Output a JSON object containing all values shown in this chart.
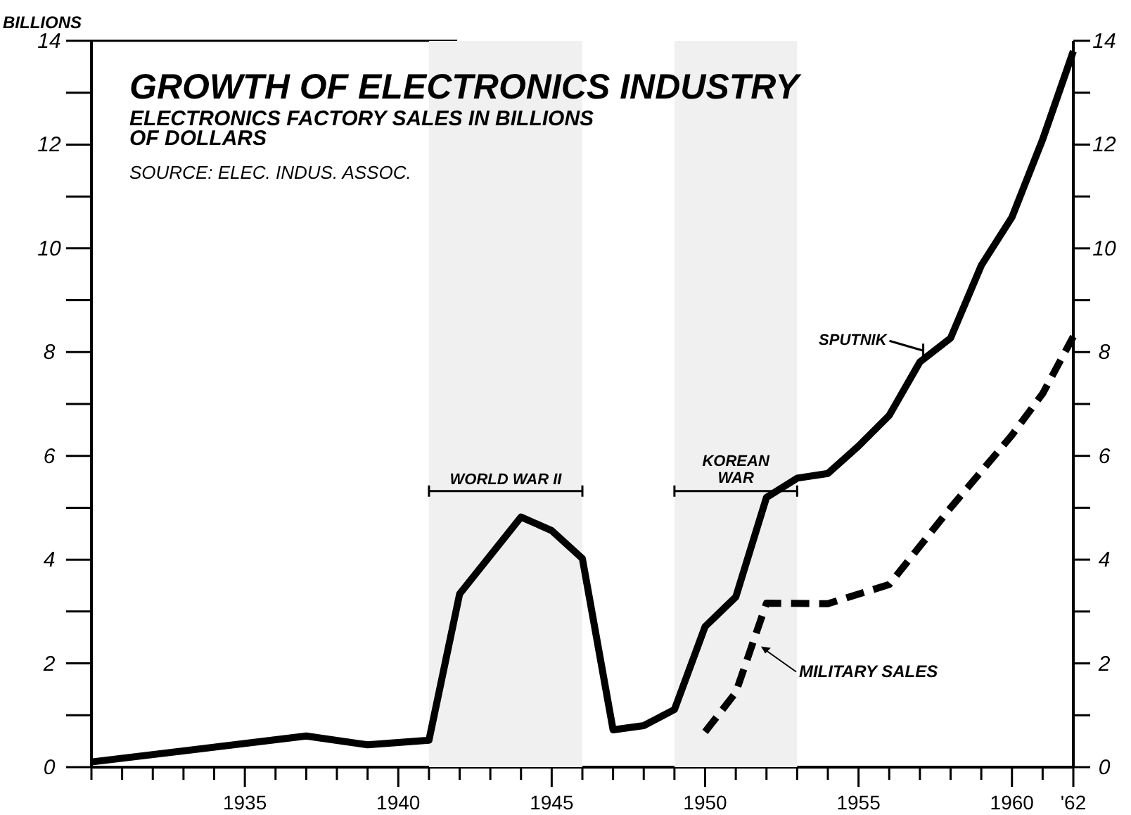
{
  "chart_data": {
    "type": "line",
    "title": "GROWTH OF ELECTRONICS INDUSTRY",
    "subtitle": "ELECTRONICS FACTORY SALES IN BILLIONS OF DOLLARS",
    "ylabel": "BILLIONS",
    "annotations": [
      "SOURCE: ELEC. INDUS. ASSOC.",
      {
        "text": "SPUTNIK",
        "x": 1957.2,
        "y": 7.81
      }
    ],
    "bands": [
      {
        "axis": "x",
        "from": 1941,
        "to": 1946,
        "label": "WORLD WAR II",
        "color": "#f0f0f0"
      },
      {
        "axis": "x",
        "from": 1949,
        "to": 1953,
        "label": "KOREAN WAR",
        "color": "#f0f0f0"
      }
    ],
    "series": [
      {
        "color": "#000000",
        "line_style": "solid",
        "x": [
          1930,
          1937,
          1939,
          1941,
          1942,
          1944,
          1945,
          1946,
          1947,
          1948,
          1949,
          1950,
          1951,
          1952,
          1953,
          1954,
          1955,
          1956,
          1957,
          1958,
          1959,
          1960,
          1961,
          1962
        ],
        "values": [
          0.1,
          0.6,
          0.43,
          0.52,
          3.34,
          4.82,
          4.56,
          4.02,
          0.72,
          0.8,
          1.11,
          2.71,
          3.28,
          5.2,
          5.57,
          5.66,
          6.19,
          6.78,
          7.81,
          8.27,
          9.67,
          10.6,
          12.1,
          13.8
        ]
      },
      {
        "name": "MILITARY SALES",
        "color": "#000000",
        "line_style": "dashed",
        "x": [
          1950,
          1951,
          1952,
          1954,
          1956,
          1958,
          1960,
          1961,
          1962
        ],
        "values": [
          0.68,
          1.44,
          3.16,
          3.15,
          3.52,
          5.0,
          6.4,
          7.2,
          8.3
        ]
      }
    ],
    "xlim": [
      1930,
      1962
    ],
    "xticks": [
      {
        "value": 1930,
        "label": null
      },
      {
        "value": 1931,
        "label": null
      },
      {
        "value": 1932,
        "label": null
      },
      {
        "value": 1933,
        "label": null
      },
      {
        "value": 1934,
        "label": null
      },
      1935,
      {
        "value": 1936,
        "label": null
      },
      {
        "value": 1937,
        "label": null
      },
      {
        "value": 1938,
        "label": null
      },
      {
        "value": 1939,
        "label": null
      },
      1940,
      {
        "value": 1941,
        "label": null
      },
      {
        "value": 1942,
        "label": null
      },
      {
        "value": 1943,
        "label": null
      },
      {
        "value": 1944,
        "label": null
      },
      1945,
      {
        "value": 1946,
        "label": null
      },
      {
        "value": 1947,
        "label": null
      },
      {
        "value": 1948,
        "label": null
      },
      {
        "value": 1949,
        "label": null
      },
      1950,
      {
        "value": 1951,
        "label": null
      },
      {
        "value": 1952,
        "label": null
      },
      {
        "value": 1953,
        "label": null
      },
      {
        "value": 1954,
        "label": null
      },
      1955,
      {
        "value": 1956,
        "label": null
      },
      {
        "value": 1957,
        "label": null
      },
      {
        "value": 1958,
        "label": null
      },
      {
        "value": 1959,
        "label": null
      },
      1960,
      {
        "value": 1961,
        "label": null
      },
      {
        "value": 1962,
        "label": "'62"
      }
    ],
    "ylim": [
      0,
      14
    ],
    "yticks": [
      0,
      {
        "value": 1,
        "label": null
      },
      2,
      {
        "value": 3,
        "label": null
      },
      4,
      {
        "value": 5,
        "label": null
      },
      6,
      {
        "value": 7,
        "label": null
      },
      8,
      {
        "value": 9,
        "label": null
      },
      10,
      {
        "value": 11,
        "label": null
      },
      12,
      {
        "value": 13,
        "label": null
      },
      14
    ],
    "y2lim": [
      0,
      14
    ],
    "y2ticks": [
      0,
      {
        "value": 1,
        "label": null
      },
      2,
      {
        "value": 3,
        "label": null
      },
      4,
      {
        "value": 5,
        "label": null
      },
      6,
      {
        "value": 7,
        "label": null
      },
      8,
      {
        "value": 9,
        "label": null
      },
      10,
      {
        "value": 11,
        "label": null
      },
      12,
      {
        "value": 13,
        "label": null
      },
      14
    ],
    "grid": false,
    "marker": "none"
  }
}
